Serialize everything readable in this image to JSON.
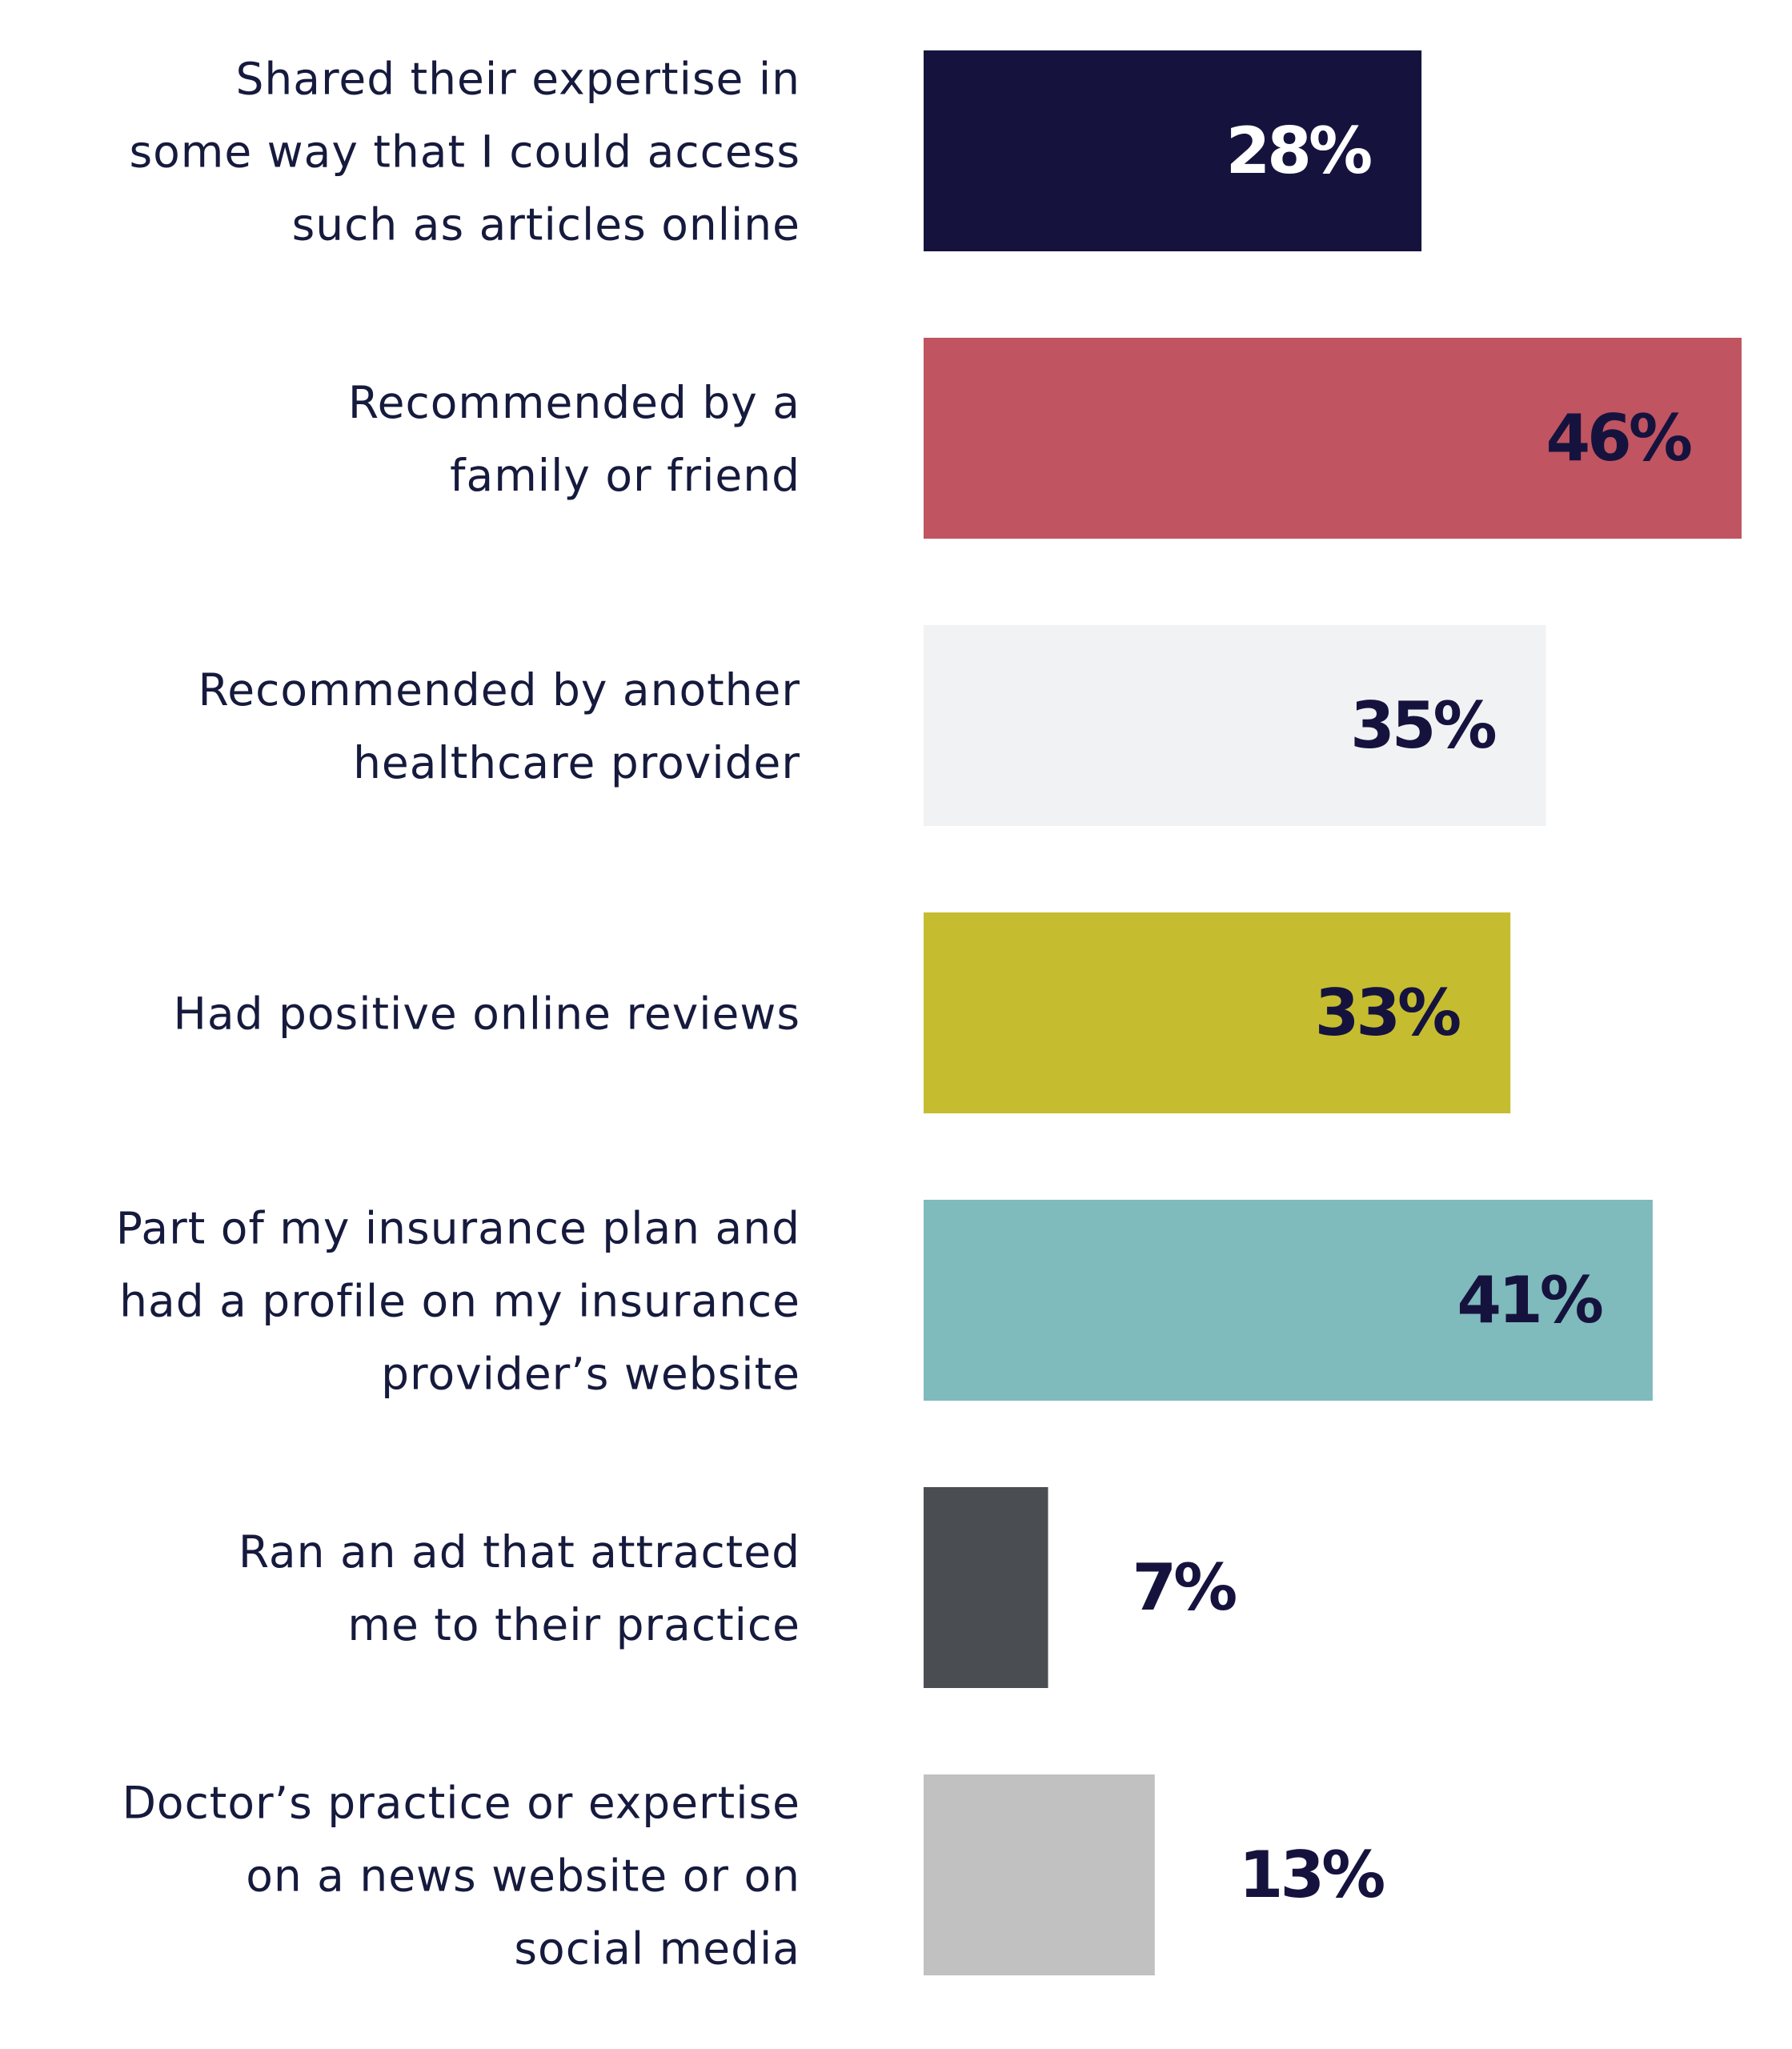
{
  "chart_data": {
    "type": "bar",
    "orientation": "horizontal",
    "title": "",
    "xlabel": "",
    "ylabel": "",
    "xlim": [
      0,
      46
    ],
    "grid": false,
    "legend": "none",
    "categories": [
      [
        "Shared their expertise in",
        "some way that I could access",
        "such as articles online"
      ],
      [
        "Recommended by a",
        "family or friend"
      ],
      [
        "Recommended by another",
        "healthcare provider"
      ],
      [
        "Had positive online reviews"
      ],
      [
        "Part of my insurance plan and",
        "had a profile on my insurance",
        "provider’s website"
      ],
      [
        "Ran an ad that attracted",
        "me to their practice"
      ],
      [
        "Doctor’s practice or expertise",
        "on a news website or on",
        "social media"
      ]
    ],
    "values": [
      28,
      46,
      35,
      33,
      41,
      7,
      13
    ],
    "data_labels": [
      "28%",
      "46%",
      "35%",
      "33%",
      "41%",
      "7%",
      "13%"
    ],
    "bar_colors": [
      "#15133e",
      "#c05460",
      "#f1f2f4",
      "#c5bd2f",
      "#7fbabc",
      "#4a4d52",
      "#c0c1c0"
    ],
    "label_colors": [
      "#ffffff",
      "#15133e",
      "#15133e",
      "#15133e",
      "#15133e",
      "#15133e",
      "#15133e"
    ],
    "label_inside_bar": [
      true,
      true,
      true,
      true,
      true,
      false,
      false
    ],
    "category_text_color": "#161a3d"
  }
}
